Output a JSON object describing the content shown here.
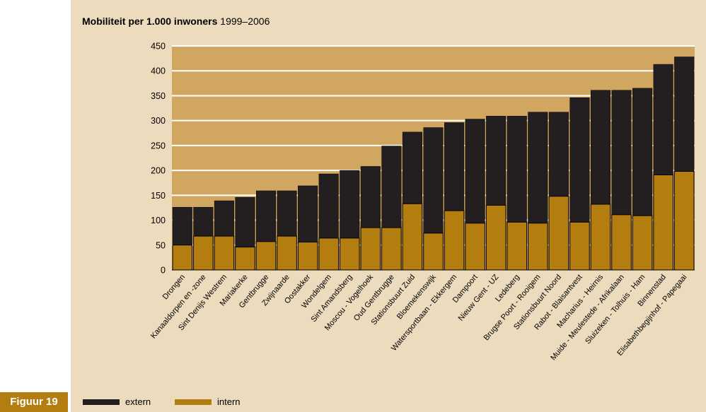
{
  "title": {
    "bold": "Mobiliteit per 1.000 inwoners",
    "period": "1999–2006"
  },
  "figure_label": "Figuur 19",
  "legend": [
    {
      "label": "extern",
      "color": "#231f20"
    },
    {
      "label": "intern",
      "color": "#b37d10"
    }
  ],
  "colors": {
    "panel": "#ecdcbd",
    "plot_bg": "#d0a661",
    "grid": "#ffffff",
    "extern": "#231f20",
    "intern": "#b37d10"
  },
  "chart_data": {
    "type": "bar",
    "stacked": true,
    "ylim": [
      0,
      450
    ],
    "yticks": [
      0,
      50,
      100,
      150,
      200,
      250,
      300,
      350,
      400,
      450
    ],
    "grid": true,
    "categories": [
      "Drongen",
      "Kanaaldorpen en -zone",
      "Sint Denijs Westrem",
      "Mariakerke",
      "Gentbrugge",
      "Zwijnaarde",
      "Oostakker",
      "Wondelgem",
      "Sint Amandsberg",
      "Moscou - Vogelhoek",
      "Oud Gentbrugge",
      "Stationsbuurt Zuid",
      "Bloemekenswijk",
      "Watersportbaan - Ekkergem",
      "Dampoort",
      "Nieuw Gent - UZ",
      "Ledeberg",
      "Brugse Poort - Rooigem",
      "Stationsbuurt Noord",
      "Rabot - Blaisantvest",
      "Macharius - Heirnis",
      "Muide - Meulestede - Afrikalaan",
      "Sluizeken - Tolhuis - Ham",
      "Binnenstad",
      "Elisabethbegijnhof - Papegaai"
    ],
    "series": [
      {
        "name": "intern",
        "values": [
          50,
          68,
          68,
          46,
          57,
          68,
          56,
          64,
          64,
          85,
          85,
          133,
          74,
          119,
          94,
          130,
          96,
          94,
          148,
          96,
          132,
          111,
          109,
          191,
          198
        ]
      },
      {
        "name": "extern",
        "values": [
          76,
          58,
          71,
          100,
          102,
          91,
          113,
          129,
          136,
          123,
          164,
          144,
          212,
          177,
          209,
          179,
          213,
          223,
          169,
          250,
          229,
          250,
          256,
          222,
          230
        ]
      }
    ]
  }
}
